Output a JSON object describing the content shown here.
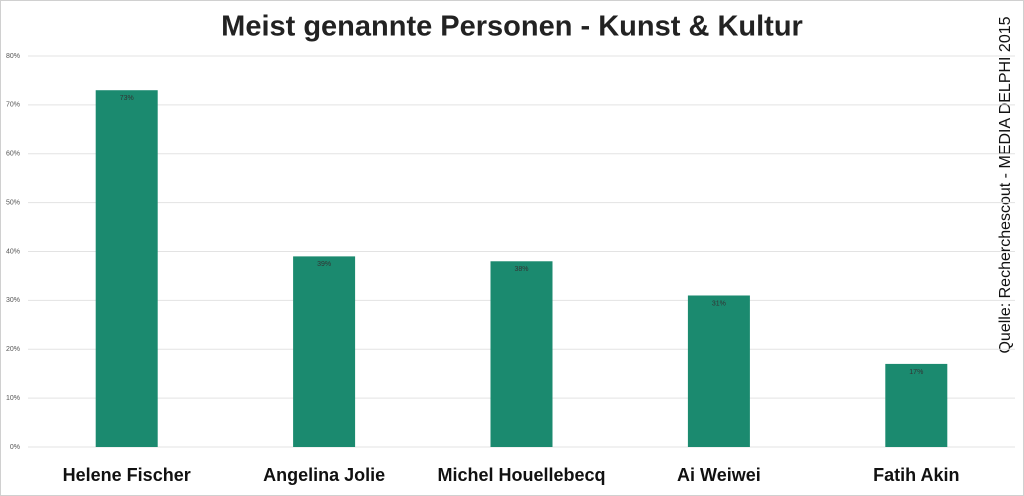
{
  "chart_data": {
    "type": "bar",
    "title": "Meist genannte Personen - Kunst & Kultur",
    "annotation": "Quelle: Recherchescout - MEDIA DELPHI 2015",
    "categories": [
      "Helene Fischer",
      "Angelina Jolie",
      "Michel Houellebecq",
      "Ai Weiwei",
      "Fatih Akin"
    ],
    "values": [
      73,
      39,
      38,
      31,
      17
    ],
    "value_labels": [
      "73%",
      "39%",
      "38%",
      "31%",
      "17%"
    ],
    "color": "#1b8a6f",
    "ylim": [
      0,
      80
    ],
    "yticks": [
      {
        "value": 0,
        "label": "0%"
      },
      {
        "value": 10,
        "label": "10%"
      },
      {
        "value": 20,
        "label": "20%"
      },
      {
        "value": 30,
        "label": "30%"
      },
      {
        "value": 40,
        "label": "40%"
      },
      {
        "value": 50,
        "label": "50%"
      },
      {
        "value": 60,
        "label": "60%"
      },
      {
        "value": 70,
        "label": "70%"
      },
      {
        "value": 80,
        "label": "80%"
      }
    ],
    "grid": true
  }
}
